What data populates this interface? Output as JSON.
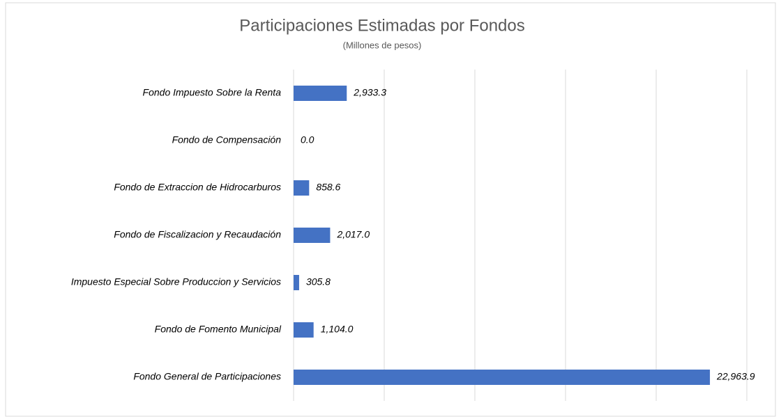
{
  "chart_data": {
    "type": "bar",
    "orientation": "horizontal",
    "title": "Participaciones Estimadas por Fondos",
    "subtitle": "(Millones de pesos)",
    "categories": [
      "Fondo Impuesto Sobre la Renta",
      "Fondo de Compensación",
      "Fondo de Extraccion de Hidrocarburos",
      "Fondo de Fiscalizacion y Recaudación",
      "Impuesto Especial Sobre Produccion y Servicios",
      "Fondo de Fomento Municipal",
      "Fondo General de Participaciones"
    ],
    "values": [
      2933.3,
      0.0,
      858.6,
      2017.0,
      305.8,
      1104.0,
      22963.9
    ],
    "value_labels": [
      "2,933.3",
      "0.0",
      "858.6",
      "2,017.0",
      "305.8",
      "1,104.0",
      "22,963.9"
    ],
    "color": "#4472c4",
    "xlim": [
      0,
      25000
    ],
    "xticks": [
      0,
      5000,
      10000,
      15000,
      20000,
      25000
    ],
    "grid": true
  }
}
